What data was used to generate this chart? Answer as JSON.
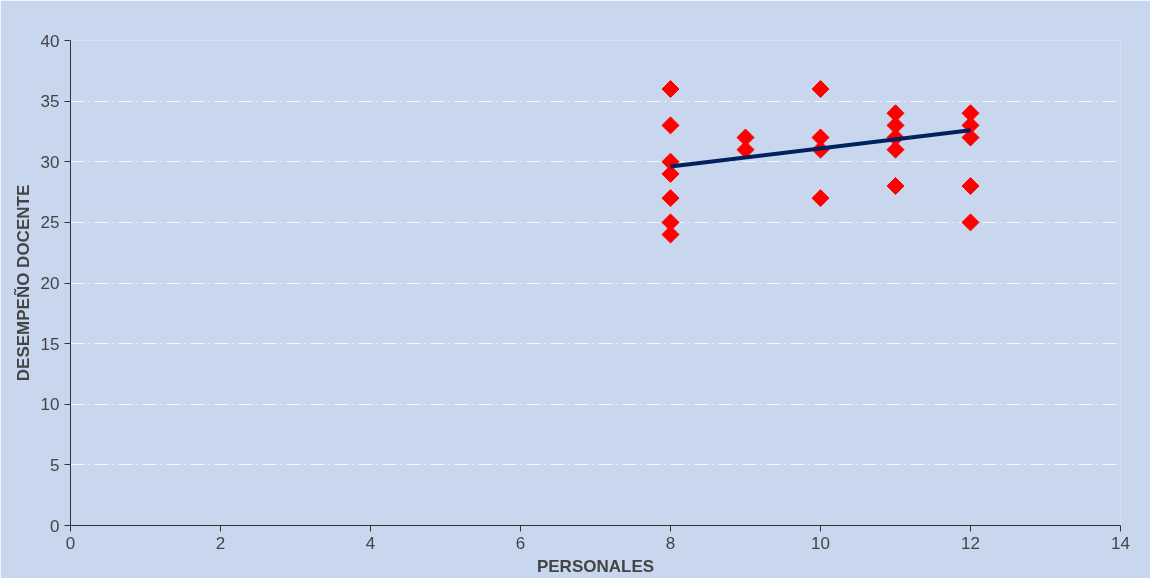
{
  "chart_data": {
    "type": "scatter",
    "xlabel": "PERSONALES",
    "ylabel": "DESEMPEÑO DOCENTE",
    "xlim": [
      0,
      14
    ],
    "ylim": [
      0,
      40
    ],
    "xticks": [
      0,
      2,
      4,
      6,
      8,
      10,
      12,
      14
    ],
    "yticks": [
      0,
      5,
      10,
      15,
      20,
      25,
      30,
      35,
      40
    ],
    "grid": "y",
    "marker": "diamond",
    "series": [
      {
        "color": "#ff0000",
        "x": [
          8,
          8,
          8,
          8,
          8,
          8,
          8,
          9,
          9,
          10,
          10,
          10,
          10,
          11,
          11,
          11,
          11,
          11,
          12,
          12,
          12,
          12,
          12
        ],
        "values": [
          36,
          33,
          30,
          29,
          27,
          25,
          24,
          32,
          31,
          36,
          32,
          31,
          27,
          34,
          33,
          32,
          31,
          28,
          34,
          33,
          32,
          28,
          25
        ]
      },
      {
        "type": "line",
        "color": "#002060",
        "x": [
          8,
          12
        ],
        "values": [
          29.6,
          32.6
        ],
        "marker": "none"
      }
    ]
  }
}
